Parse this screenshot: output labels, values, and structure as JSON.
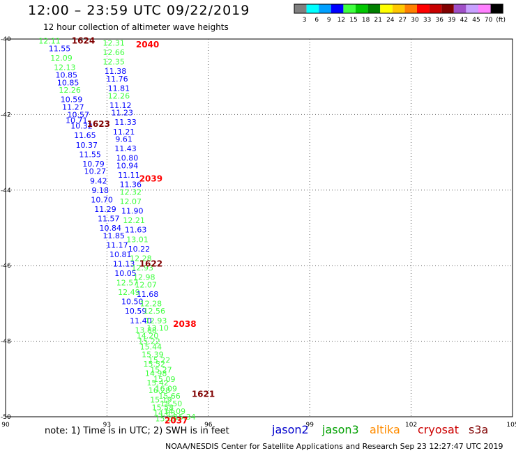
{
  "title": "12:00 – 23:59 UTC 09/22/2019",
  "subtitle": "12 hour collection of altimeter wave heights",
  "colorbar": {
    "ticks": [
      "3",
      "6",
      "9",
      "12",
      "15",
      "18",
      "21",
      "24",
      "27",
      "30",
      "33",
      "36",
      "39",
      "42",
      "45",
      "70",
      "(ft)"
    ],
    "colors": [
      "#808080",
      "#00ffff",
      "#00a0ff",
      "#0000ff",
      "#40ff40",
      "#00c800",
      "#008000",
      "#ffff00",
      "#ffc800",
      "#ff8000",
      "#ff0000",
      "#c80000",
      "#800000",
      "#a050c8",
      "#c8a0ff",
      "#ff80ff",
      "#000000"
    ]
  },
  "note": "note:  1) Time is in UTC;  2) SWH is in feet",
  "satellites": [
    {
      "name": "jason2",
      "color": "#0000cc"
    },
    {
      "name": "jason3",
      "color": "#00a000"
    },
    {
      "name": "altika",
      "color": "#ff8c00"
    },
    {
      "name": "cryosat",
      "color": "#cc0000"
    },
    {
      "name": "s3a",
      "color": "#800000"
    }
  ],
  "credit": "NOAA/NESDIS Center for Satellite Applications and Research     Sep 23 12:27:47 UTC 2019",
  "chart_data": {
    "type": "scatter",
    "title": "12:00 – 23:59 UTC 09/22/2019",
    "subtitle": "12 hour collection of altimeter wave heights",
    "xlabel": "",
    "ylabel": "",
    "xlim": [
      90,
      105
    ],
    "ylim": [
      -50,
      -40
    ],
    "xticks": [
      "90",
      "93",
      "96",
      "99",
      "102",
      "105"
    ],
    "yticks": [
      "-40",
      "-42",
      "-44",
      "-46",
      "-48",
      "-50"
    ],
    "grid": true,
    "points": [
      {
        "x": 91.3,
        "y": -40.05,
        "v": "12.11",
        "c": "#40ff40"
      },
      {
        "x": 91.6,
        "y": -40.25,
        "v": "11.55",
        "c": "#0000ff"
      },
      {
        "x": 91.65,
        "y": -40.5,
        "v": "12.09",
        "c": "#40ff40"
      },
      {
        "x": 91.75,
        "y": -40.75,
        "v": "12.13",
        "c": "#40ff40"
      },
      {
        "x": 91.8,
        "y": -40.95,
        "v": "10.85",
        "c": "#0000ff"
      },
      {
        "x": 91.85,
        "y": -41.15,
        "v": "10.85",
        "c": "#0000ff"
      },
      {
        "x": 91.9,
        "y": -41.35,
        "v": "12.26",
        "c": "#40ff40"
      },
      {
        "x": 91.95,
        "y": -41.6,
        "v": "10.59",
        "c": "#0000ff"
      },
      {
        "x": 92.0,
        "y": -41.8,
        "v": "11.27",
        "c": "#0000ff"
      },
      {
        "x": 92.15,
        "y": -42.0,
        "v": "10.57",
        "c": "#0000ff"
      },
      {
        "x": 92.1,
        "y": -42.15,
        "v": "10.71",
        "c": "#0000ff"
      },
      {
        "x": 92.25,
        "y": -42.3,
        "v": "10.32",
        "c": "#0000ff"
      },
      {
        "x": 92.35,
        "y": -42.55,
        "v": "11.65",
        "c": "#0000ff"
      },
      {
        "x": 92.4,
        "y": -42.8,
        "v": "10.37",
        "c": "#0000ff"
      },
      {
        "x": 92.5,
        "y": -43.05,
        "v": "11.55",
        "c": "#0000ff"
      },
      {
        "x": 92.6,
        "y": -43.3,
        "v": "10.79",
        "c": "#0000ff"
      },
      {
        "x": 92.65,
        "y": -43.5,
        "v": "10.27",
        "c": "#0000ff"
      },
      {
        "x": 92.75,
        "y": -43.75,
        "v": "9.42",
        "c": "#0000ff"
      },
      {
        "x": 92.8,
        "y": -44.0,
        "v": "9.18",
        "c": "#0000ff"
      },
      {
        "x": 92.85,
        "y": -44.25,
        "v": "10.70",
        "c": "#0000ff"
      },
      {
        "x": 92.95,
        "y": -44.5,
        "v": "11.29",
        "c": "#0000ff"
      },
      {
        "x": 93.05,
        "y": -44.75,
        "v": "11.57",
        "c": "#0000ff"
      },
      {
        "x": 93.1,
        "y": -45.0,
        "v": "10.84",
        "c": "#0000ff"
      },
      {
        "x": 93.2,
        "y": -45.2,
        "v": "11.85",
        "c": "#0000ff"
      },
      {
        "x": 93.3,
        "y": -45.45,
        "v": "11.17",
        "c": "#0000ff"
      },
      {
        "x": 93.4,
        "y": -45.7,
        "v": "10.81",
        "c": "#0000ff"
      },
      {
        "x": 93.5,
        "y": -45.95,
        "v": "11.13",
        "c": "#0000ff"
      },
      {
        "x": 93.55,
        "y": -46.2,
        "v": "10.05",
        "c": "#0000ff"
      },
      {
        "x": 93.6,
        "y": -46.45,
        "v": "12.57",
        "c": "#40ff40"
      },
      {
        "x": 93.65,
        "y": -46.7,
        "v": "12.49",
        "c": "#40ff40"
      },
      {
        "x": 93.75,
        "y": -46.95,
        "v": "10.50",
        "c": "#0000ff"
      },
      {
        "x": 93.85,
        "y": -47.2,
        "v": "10.59",
        "c": "#0000ff"
      },
      {
        "x": 94.0,
        "y": -47.45,
        "v": "11.40",
        "c": "#0000ff"
      },
      {
        "x": 93.2,
        "y": -40.1,
        "v": "12.31",
        "c": "#40ff40"
      },
      {
        "x": 93.2,
        "y": -40.35,
        "v": "12.66",
        "c": "#40ff40"
      },
      {
        "x": 93.2,
        "y": -40.6,
        "v": "12.35",
        "c": "#40ff40"
      },
      {
        "x": 93.25,
        "y": -40.85,
        "v": "11.38",
        "c": "#0000ff"
      },
      {
        "x": 93.3,
        "y": -41.05,
        "v": "11.76",
        "c": "#0000ff"
      },
      {
        "x": 93.35,
        "y": -41.3,
        "v": "11.81",
        "c": "#0000ff"
      },
      {
        "x": 93.35,
        "y": -41.5,
        "v": "12.26",
        "c": "#40ff40"
      },
      {
        "x": 93.4,
        "y": -41.75,
        "v": "11.12",
        "c": "#0000ff"
      },
      {
        "x": 93.45,
        "y": -41.95,
        "v": "11.23",
        "c": "#0000ff"
      },
      {
        "x": 93.55,
        "y": -42.2,
        "v": "11.33",
        "c": "#0000ff"
      },
      {
        "x": 93.5,
        "y": -42.45,
        "v": "11.21",
        "c": "#0000ff"
      },
      {
        "x": 93.5,
        "y": -42.65,
        "v": "9.61",
        "c": "#0000ff"
      },
      {
        "x": 93.55,
        "y": -42.9,
        "v": "11.43",
        "c": "#0000ff"
      },
      {
        "x": 93.6,
        "y": -43.15,
        "v": "10.80",
        "c": "#0000ff"
      },
      {
        "x": 93.6,
        "y": -43.35,
        "v": "10.94",
        "c": "#0000ff"
      },
      {
        "x": 93.65,
        "y": -43.6,
        "v": "11.11",
        "c": "#0000ff"
      },
      {
        "x": 93.7,
        "y": -43.85,
        "v": "11.36",
        "c": "#0000ff"
      },
      {
        "x": 93.7,
        "y": -44.05,
        "v": "12.32",
        "c": "#40ff40"
      },
      {
        "x": 93.7,
        "y": -44.3,
        "v": "12.07",
        "c": "#40ff40"
      },
      {
        "x": 93.75,
        "y": -44.55,
        "v": "11.90",
        "c": "#0000ff"
      },
      {
        "x": 93.8,
        "y": -44.8,
        "v": "12.21",
        "c": "#40ff40"
      },
      {
        "x": 93.85,
        "y": -45.05,
        "v": "11.63",
        "c": "#0000ff"
      },
      {
        "x": 93.9,
        "y": -45.3,
        "v": "13.01",
        "c": "#40ff40"
      },
      {
        "x": 93.95,
        "y": -45.55,
        "v": "10.22",
        "c": "#0000ff"
      },
      {
        "x": 94.0,
        "y": -45.8,
        "v": "12.28",
        "c": "#40ff40"
      },
      {
        "x": 94.05,
        "y": -46.05,
        "v": "12.93",
        "c": "#40ff40"
      },
      {
        "x": 94.1,
        "y": -46.3,
        "v": "12.98",
        "c": "#40ff40"
      },
      {
        "x": 94.15,
        "y": -46.5,
        "v": "12.07",
        "c": "#40ff40"
      },
      {
        "x": 94.2,
        "y": -46.75,
        "v": "11.68",
        "c": "#0000ff"
      },
      {
        "x": 94.3,
        "y": -47.0,
        "v": "12.28",
        "c": "#40ff40"
      },
      {
        "x": 94.4,
        "y": -47.2,
        "v": "12.56",
        "c": "#40ff40"
      },
      {
        "x": 94.45,
        "y": -47.45,
        "v": "12.93",
        "c": "#40ff40"
      },
      {
        "x": 94.5,
        "y": -47.65,
        "v": "13.10",
        "c": "#40ff40"
      },
      {
        "x": 94.15,
        "y": -47.7,
        "v": "13.88",
        "c": "#40ff40"
      },
      {
        "x": 94.2,
        "y": -47.85,
        "v": "14.20",
        "c": "#40ff40"
      },
      {
        "x": 94.25,
        "y": -48.0,
        "v": "15.22",
        "c": "#40ff40"
      },
      {
        "x": 94.3,
        "y": -48.15,
        "v": "15.44",
        "c": "#40ff40"
      },
      {
        "x": 94.35,
        "y": -48.35,
        "v": "15.39",
        "c": "#40ff40"
      },
      {
        "x": 94.55,
        "y": -48.5,
        "v": "15.22",
        "c": "#40ff40"
      },
      {
        "x": 94.4,
        "y": -48.6,
        "v": "15.52",
        "c": "#40ff40"
      },
      {
        "x": 94.6,
        "y": -48.75,
        "v": "15.27",
        "c": "#40ff40"
      },
      {
        "x": 94.45,
        "y": -48.85,
        "v": "14.98",
        "c": "#40ff40"
      },
      {
        "x": 94.7,
        "y": -49.0,
        "v": "15.09",
        "c": "#40ff40"
      },
      {
        "x": 94.5,
        "y": -49.1,
        "v": "15.42",
        "c": "#40ff40"
      },
      {
        "x": 94.75,
        "y": -49.25,
        "v": "16.09",
        "c": "#40ff40"
      },
      {
        "x": 94.55,
        "y": -49.3,
        "v": "16.28",
        "c": "#40ff40"
      },
      {
        "x": 94.85,
        "y": -49.45,
        "v": "15.66",
        "c": "#40ff40"
      },
      {
        "x": 94.6,
        "y": -49.55,
        "v": "15.19",
        "c": "#40ff40"
      },
      {
        "x": 94.9,
        "y": -49.65,
        "v": "15.50",
        "c": "#40ff40"
      },
      {
        "x": 94.65,
        "y": -49.75,
        "v": "15.58",
        "c": "#40ff40"
      },
      {
        "x": 95.0,
        "y": -49.85,
        "v": "14.09",
        "c": "#40ff40"
      },
      {
        "x": 94.7,
        "y": -49.9,
        "v": "14.83",
        "c": "#40ff40"
      },
      {
        "x": 95.3,
        "y": -50.0,
        "v": "15.34",
        "c": "#40ff40"
      },
      {
        "x": 94.75,
        "y": -50.05,
        "v": "15.09",
        "c": "#40ff40"
      }
    ],
    "time_labels": [
      {
        "x": 92.3,
        "y": -40.05,
        "t": "1624",
        "c": "#800000"
      },
      {
        "x": 94.2,
        "y": -40.15,
        "t": "2040",
        "c": "#ff0000"
      },
      {
        "x": 92.75,
        "y": -42.25,
        "t": "1623",
        "c": "#800000"
      },
      {
        "x": 94.3,
        "y": -43.7,
        "t": "2039",
        "c": "#ff0000"
      },
      {
        "x": 94.3,
        "y": -45.95,
        "t": "1622",
        "c": "#800000"
      },
      {
        "x": 95.3,
        "y": -47.55,
        "t": "2038",
        "c": "#ff0000"
      },
      {
        "x": 95.85,
        "y": -49.4,
        "t": "1621",
        "c": "#800000"
      },
      {
        "x": 95.05,
        "y": -50.1,
        "t": "2037",
        "c": "#ff0000"
      }
    ]
  }
}
